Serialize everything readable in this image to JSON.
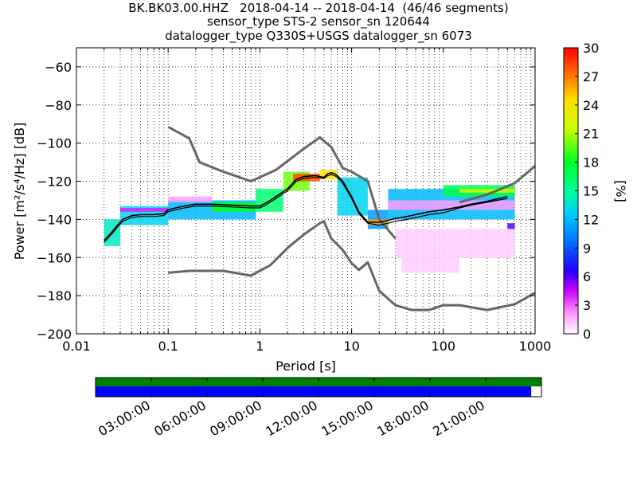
{
  "header": {
    "line1": "BK.BK03.00.HHZ   2018-04-14 -- 2018-04-14  (46/46 segments)",
    "line2": "sensor_type STS-2 sensor_sn 120644",
    "line3": "datalogger_type Q330S+USGS datalogger_sn 6073"
  },
  "chart_data": {
    "type": "heatmap",
    "xlabel": "Period [s]",
    "ylabel": "Power [m²/s⁴/Hz] [dB]",
    "xscale": "log",
    "xlim": [
      0.01,
      1000
    ],
    "ylim": [
      -200,
      -50
    ],
    "x_ticks": [
      0.01,
      0.1,
      1,
      10,
      100,
      1000
    ],
    "x_tick_labels": [
      "0.01",
      "0.1",
      "1",
      "10",
      "100",
      "1000"
    ],
    "y_ticks": [
      -200,
      -180,
      -160,
      -140,
      -120,
      -100,
      -80,
      -60
    ],
    "y_tick_labels": [
      "−200",
      "−180",
      "−160",
      "−140",
      "−120",
      "−100",
      "−80",
      "−60"
    ],
    "grid": true,
    "colorbar": {
      "label": "[%]",
      "range": [
        0,
        30
      ],
      "ticks": [
        "0",
        "3",
        "6",
        "9",
        "12",
        "15",
        "18",
        "21",
        "24",
        "27",
        "30"
      ]
    },
    "noise_model_high": {
      "x": [
        0.1,
        0.17,
        0.22,
        0.4,
        0.8,
        1.5,
        3,
        4.5,
        6,
        8,
        10,
        15,
        20,
        30
      ],
      "y": [
        -91.5,
        -97.5,
        -110,
        -115,
        -120,
        -114,
        -103,
        -97,
        -102,
        -113,
        -115,
        -120,
        -140,
        -150
      ]
    },
    "noise_model_low": {
      "x": [
        0.1,
        0.17,
        0.4,
        0.8,
        1.3,
        2,
        3,
        4.5,
        5,
        6,
        8,
        10,
        12,
        15,
        20,
        30,
        45,
        70,
        100,
        150,
        300,
        600,
        1000
      ],
      "y": [
        -168,
        -167,
        -167,
        -169.5,
        -164,
        -155,
        -148,
        -142,
        -141,
        -150,
        -156,
        -163,
        -166.5,
        -162.5,
        -177.5,
        -185,
        -187.5,
        -187.5,
        -185,
        -185,
        -187.5,
        -184.5,
        -178.5
      ]
    },
    "noise_model_high_tail": {
      "x": [
        150,
        300,
        600,
        1000
      ],
      "y": [
        -131,
        -127,
        -121,
        -112
      ]
    },
    "mode_curve": {
      "x": [
        0.02,
        0.022,
        0.025,
        0.028,
        0.032,
        0.04,
        0.05,
        0.07,
        0.09,
        0.1,
        0.12,
        0.15,
        0.2,
        0.3,
        0.5,
        0.8,
        1,
        1.2,
        1.5,
        2,
        2.5,
        3,
        4,
        5,
        5.5,
        6,
        6.5,
        7,
        8,
        10,
        12,
        15,
        20,
        25,
        30,
        40,
        50,
        70,
        100,
        150,
        200,
        300,
        500
      ],
      "y": [
        -151,
        -149,
        -146,
        -143,
        -140,
        -138,
        -137.5,
        -137.5,
        -137,
        -135,
        -134,
        -133,
        -132,
        -132,
        -132.5,
        -133,
        -133,
        -131,
        -128,
        -124,
        -119,
        -117.5,
        -117,
        -118,
        -116,
        -115.5,
        -116,
        -117,
        -120,
        -128,
        -136,
        -141.5,
        -141.5,
        -140.5,
        -139.5,
        -138.5,
        -137.5,
        -136,
        -135,
        -133.5,
        -132,
        -130.5,
        -128
      ]
    },
    "mean_curve": {
      "x": [
        0.02,
        0.022,
        0.025,
        0.028,
        0.032,
        0.04,
        0.05,
        0.07,
        0.09,
        0.1,
        0.12,
        0.15,
        0.2,
        0.3,
        0.5,
        0.8,
        1,
        1.2,
        1.5,
        2,
        2.5,
        3,
        4,
        5,
        5.5,
        6,
        6.5,
        7,
        8,
        10,
        12,
        15,
        20,
        25,
        30,
        40,
        50,
        70,
        100,
        150,
        200,
        300,
        500
      ],
      "y": [
        -152,
        -150,
        -147,
        -144,
        -141,
        -139,
        -138.5,
        -138.5,
        -138,
        -136,
        -135,
        -134,
        -133,
        -133,
        -133.5,
        -134,
        -134,
        -132,
        -129,
        -125,
        -120,
        -118.5,
        -118,
        -118.5,
        -117,
        -116.5,
        -117,
        -118,
        -121,
        -129,
        -137,
        -142,
        -143,
        -142,
        -141,
        -140,
        -139,
        -137.5,
        -136.5,
        -134,
        -132.5,
        -131,
        -129
      ]
    },
    "density_bands": [
      {
        "x0": 0.02,
        "x1": 0.03,
        "y0": -154,
        "y1": -140,
        "pct": 14
      },
      {
        "x0": 0.03,
        "x1": 0.1,
        "y0": -143,
        "y1": -133,
        "pct": 13
      },
      {
        "x0": 0.03,
        "x1": 0.1,
        "y0": -136,
        "y1": -134,
        "pct": 4
      },
      {
        "x0": 0.1,
        "x1": 0.9,
        "y0": -140,
        "y1": -130,
        "pct": 12
      },
      {
        "x0": 0.1,
        "x1": 0.3,
        "y0": -131,
        "y1": -128,
        "pct": 2
      },
      {
        "x0": 0.3,
        "x1": 0.9,
        "y0": -136,
        "y1": -131,
        "pct": 18
      },
      {
        "x0": 0.9,
        "x1": 1.8,
        "y0": -136,
        "y1": -124,
        "pct": 16
      },
      {
        "x0": 1.8,
        "x1": 3.5,
        "y0": -125,
        "y1": -115,
        "pct": 20
      },
      {
        "x0": 2.3,
        "x1": 4.5,
        "y0": -120,
        "y1": -116,
        "pct": 28
      },
      {
        "x0": 4.5,
        "x1": 7,
        "y0": -119,
        "y1": -114,
        "pct": 24
      },
      {
        "x0": 7,
        "x1": 15,
        "y0": -138,
        "y1": -118,
        "pct": 13
      },
      {
        "x0": 15,
        "x1": 25,
        "y0": -145,
        "y1": -135,
        "pct": 11
      },
      {
        "x0": 15,
        "x1": 25,
        "y0": -143,
        "y1": -140,
        "pct": 26
      },
      {
        "x0": 25,
        "x1": 600,
        "y0": -140,
        "y1": -124,
        "pct": 12
      },
      {
        "x0": 25,
        "x1": 600,
        "y0": -135,
        "y1": -130,
        "pct": 2
      },
      {
        "x0": 100,
        "x1": 600,
        "y0": -128,
        "y1": -122,
        "pct": 17
      },
      {
        "x0": 150,
        "x1": 600,
        "y0": -126,
        "y1": -124,
        "pct": 22
      },
      {
        "x0": 30,
        "x1": 600,
        "y0": -160,
        "y1": -145,
        "pct": 1
      },
      {
        "x0": 35,
        "x1": 150,
        "y0": -168,
        "y1": -160,
        "pct": 1
      },
      {
        "x0": 500,
        "x1": 600,
        "y0": -145,
        "y1": -142,
        "pct": 6
      }
    ]
  },
  "timeline": {
    "labels": [
      "03:00:00",
      "06:00:00",
      "09:00:00",
      "12:00:00",
      "15:00:00",
      "18:00:00",
      "21:00:00"
    ],
    "hours": [
      3,
      6,
      9,
      12,
      15,
      18,
      21
    ],
    "range_hours": [
      0,
      24
    ],
    "green_coverage": 1.0,
    "blue_coverage": 0.977,
    "colors": {
      "top_bar": "#008000",
      "bottom_bar": "#0000ff"
    }
  }
}
